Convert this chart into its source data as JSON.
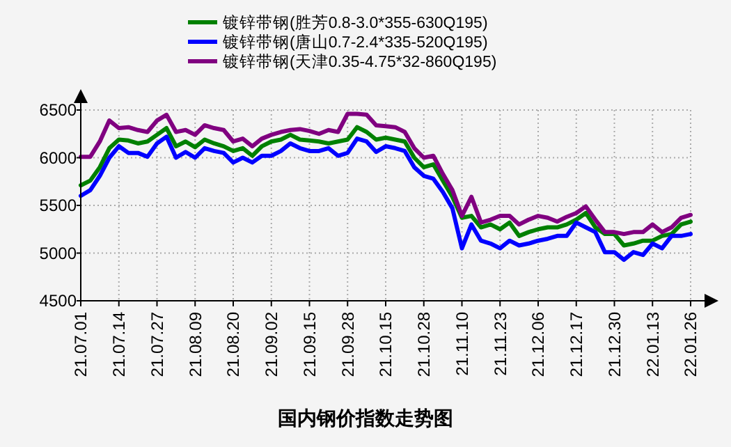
{
  "chart_data": {
    "type": "line",
    "title": "国内钢价指数走势图",
    "categories": [
      "21.07.01",
      null,
      null,
      null,
      "21.07.14",
      null,
      null,
      null,
      "21.07.27",
      null,
      null,
      null,
      "21.08.09",
      null,
      null,
      null,
      "21.08.20",
      null,
      null,
      null,
      "21.09.02",
      null,
      null,
      null,
      "21.09.15",
      null,
      null,
      null,
      "21.09.28",
      null,
      null,
      null,
      "21.10.15",
      null,
      null,
      null,
      "21.10.28",
      null,
      null,
      null,
      "21.11.10",
      null,
      null,
      null,
      "21.11.23",
      null,
      null,
      null,
      "21.12.06",
      null,
      null,
      null,
      "21.12.17",
      null,
      null,
      null,
      "21.12.30",
      null,
      null,
      null,
      "22.01.13",
      null,
      null,
      null,
      "22.01.26"
    ],
    "series": [
      {
        "name": "镀锌带钢(胜芳0.8-3.0*355-630Q195)",
        "color": "#008000",
        "values": [
          5710,
          5760,
          5900,
          6100,
          6190,
          6180,
          6150,
          6170,
          6240,
          6310,
          6120,
          6170,
          6110,
          6190,
          6150,
          6120,
          6070,
          6100,
          6020,
          6120,
          6170,
          6190,
          6240,
          6190,
          6180,
          6170,
          6150,
          6170,
          6190,
          6320,
          6270,
          6190,
          6210,
          6190,
          6170,
          6000,
          5900,
          5930,
          5760,
          5590,
          5370,
          5390,
          5270,
          5300,
          5250,
          5320,
          5180,
          5220,
          5250,
          5270,
          5270,
          5300,
          5350,
          5420,
          5270,
          5200,
          5200,
          5080,
          5100,
          5130,
          5130,
          5180,
          5200,
          5300,
          5330
        ]
      },
      {
        "name": "镀锌带钢(唐山0.7-2.4*335-520Q195)",
        "color": "#0000ff",
        "values": [
          5600,
          5660,
          5810,
          6000,
          6120,
          6050,
          6050,
          6010,
          6150,
          6220,
          6000,
          6060,
          6000,
          6100,
          6070,
          6050,
          5950,
          6000,
          5950,
          6020,
          6020,
          6070,
          6150,
          6100,
          6070,
          6070,
          6100,
          6020,
          6050,
          6200,
          6170,
          6060,
          6120,
          6100,
          6070,
          5900,
          5810,
          5780,
          5640,
          5470,
          5050,
          5300,
          5130,
          5100,
          5050,
          5130,
          5080,
          5100,
          5130,
          5150,
          5180,
          5180,
          5320,
          5270,
          5220,
          5010,
          5010,
          4930,
          5010,
          4980,
          5100,
          5050,
          5180,
          5180,
          5200
        ]
      },
      {
        "name": "镀锌带钢(天津0.35-4.75*32-860Q195)",
        "color": "#800080",
        "values": [
          6010,
          6010,
          6170,
          6390,
          6310,
          6320,
          6290,
          6270,
          6390,
          6450,
          6270,
          6290,
          6240,
          6340,
          6310,
          6290,
          6170,
          6200,
          6120,
          6200,
          6240,
          6270,
          6290,
          6300,
          6280,
          6250,
          6290,
          6270,
          6460,
          6460,
          6450,
          6340,
          6330,
          6320,
          6270,
          6100,
          6000,
          6020,
          5830,
          5660,
          5390,
          5590,
          5320,
          5350,
          5390,
          5390,
          5300,
          5350,
          5390,
          5370,
          5330,
          5380,
          5420,
          5490,
          5350,
          5220,
          5220,
          5200,
          5220,
          5220,
          5300,
          5220,
          5270,
          5370,
          5400
        ]
      }
    ],
    "ylim": [
      4500,
      6500
    ],
    "yticks": [
      4500,
      5000,
      5500,
      6000,
      6500
    ],
    "grid": true,
    "legend": "top",
    "line_style": "solid",
    "marker": "none"
  }
}
